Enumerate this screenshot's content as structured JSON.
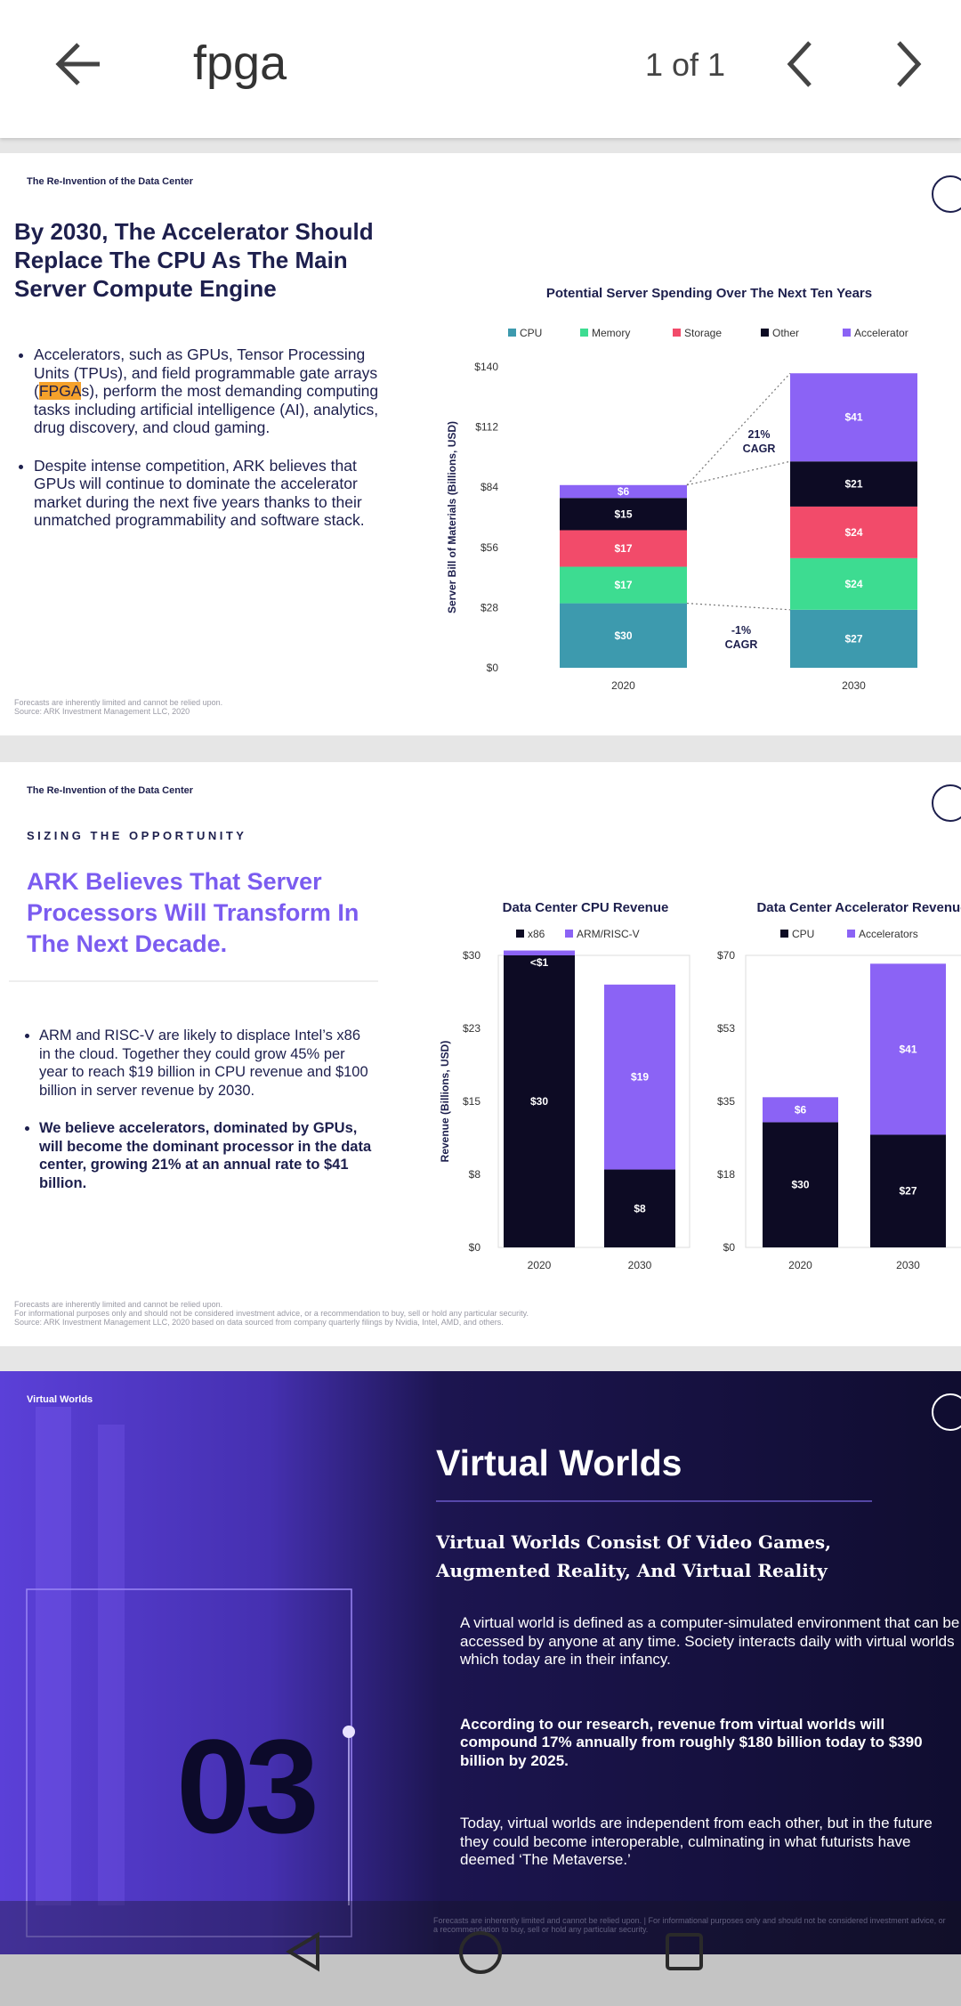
{
  "toolbar": {
    "query": "fpga",
    "match_count": "1 of 1"
  },
  "slides": [
    {
      "section": "The Re-Invention of the Data Center",
      "title": "By 2030, The Accelerator Should Replace The CPU As The Main Server Compute Engine",
      "bullets": [
        {
          "before": "Accelerators, such as GPUs, Tensor Processing Units (TPUs), and field programmable gate arrays (",
          "match": "FPGA",
          "after": "s), perform the most demanding computing tasks including artificial intelligence (AI), analytics, drug discovery, and cloud gaming."
        },
        {
          "text": "Despite intense competition, ARK believes that GPUs will continue to dominate the accelerator market during the next five years thanks to their unmatched programmability and software stack."
        }
      ],
      "footnote": [
        "Forecasts are inherently limited and cannot be relied upon.",
        "Source: ARK Investment Management LLC, 2020"
      ],
      "chart": {
        "type": "stacked-bar",
        "title": "Potential Server Spending Over The Next Ten Years",
        "ylabel": "Server Bill of Materials (Billions, USD)",
        "categories": [
          "2020",
          "2030"
        ],
        "series": [
          {
            "name": "CPU",
            "color": "#3d9aae",
            "values": [
              30,
              27
            ],
            "value_labels": [
              "$30",
              "$27"
            ]
          },
          {
            "name": "Memory",
            "color": "#3ddc91",
            "values": [
              17,
              24
            ],
            "value_labels": [
              "$17",
              "$24"
            ]
          },
          {
            "name": "Storage",
            "color": "#f24b6a",
            "values": [
              17,
              24
            ],
            "value_labels": [
              "$17",
              "$24"
            ]
          },
          {
            "name": "Other",
            "color": "#0d0b24",
            "values": [
              15,
              21
            ],
            "value_labels": [
              "$15",
              "$21"
            ]
          },
          {
            "name": "Accelerator",
            "color": "#8b63f5",
            "values": [
              6,
              41
            ],
            "value_labels": [
              "$6",
              "$41"
            ]
          }
        ],
        "ylim": [
          0,
          140
        ],
        "yticks": [
          {
            "value": 0,
            "label": "$0"
          },
          {
            "value": 28,
            "label": "$28"
          },
          {
            "value": 56,
            "label": "$56"
          },
          {
            "value": 84,
            "label": "$84"
          },
          {
            "value": 112,
            "label": "$112"
          },
          {
            "value": 140,
            "label": "$140"
          }
        ],
        "annotations": [
          [
            "21%",
            "CAGR"
          ],
          [
            "-1%",
            "CAGR"
          ]
        ]
      }
    },
    {
      "section": "The Re-Invention of the Data Center",
      "kicker": "SIZING THE OPPORTUNITY",
      "title": "ARK Believes That Server Processors Will Transform In The Next Decade.",
      "bullets": [
        {
          "text": "ARM and RISC-V are likely to displace Intel’s x86 in the cloud. Together they could grow 45% per year to reach $19 billion in CPU revenue and $100 billion in server revenue by 2030."
        },
        {
          "text": "We believe accelerators, dominated by GPUs, will become the dominant processor in the data center, growing 21% at an annual rate to $41 billion.",
          "bold": true
        }
      ],
      "footnote": [
        "Forecasts are inherently limited and cannot be relied upon.",
        "For informational purposes only and should not be considered investment advice, or a recommendation to buy, sell or hold any particular security.",
        "Source: ARK Investment Management LLC, 2020 based on data sourced from company quarterly filings by Nvidia, Intel, AMD, and others."
      ],
      "charts": [
        {
          "type": "stacked-bar",
          "title": "Data Center CPU Revenue",
          "ylabel": "Revenue (Billions, USD)",
          "frame": true,
          "categories": [
            "2020",
            "2030"
          ],
          "series": [
            {
              "name": "x86",
              "color": "#0d0b24",
              "values": [
                30,
                8
              ],
              "value_labels": [
                "$30",
                "$8"
              ]
            },
            {
              "name": "ARM/RISC-V",
              "color": "#8b63f5",
              "values": [
                0.5,
                19
              ],
              "value_labels": [
                "<$1",
                "$19"
              ]
            }
          ],
          "ylim": [
            0,
            30
          ],
          "yticks": [
            {
              "value": 0,
              "label": "$0"
            },
            {
              "value": 7.5,
              "label": "$8"
            },
            {
              "value": 15,
              "label": "$15"
            },
            {
              "value": 22.5,
              "label": "$23"
            },
            {
              "value": 30,
              "label": "$30"
            }
          ]
        },
        {
          "type": "stacked-bar",
          "title": "Data Center Accelerator Revenue",
          "frame": true,
          "categories": [
            "2020",
            "2030"
          ],
          "series": [
            {
              "name": "CPU",
              "color": "#0d0b24",
              "values": [
                30,
                27
              ],
              "value_labels": [
                "$30",
                "$27"
              ]
            },
            {
              "name": "Accelerators",
              "color": "#8b63f5",
              "values": [
                6,
                41
              ],
              "value_labels": [
                "$6",
                "$41"
              ]
            }
          ],
          "ylim": [
            0,
            70
          ],
          "yticks": [
            {
              "value": 0,
              "label": "$0"
            },
            {
              "value": 17.5,
              "label": "$18"
            },
            {
              "value": 35,
              "label": "$35"
            },
            {
              "value": 52.5,
              "label": "$53"
            },
            {
              "value": 70,
              "label": "$70"
            }
          ]
        }
      ]
    },
    {
      "section": "Virtual Worlds",
      "number": "03",
      "title": "Virtual Worlds",
      "subtitle": "Virtual Worlds Consist Of Video Games, Augmented Reality, And Virtual Reality",
      "bullets": [
        {
          "text": "A virtual world is defined as a computer-simulated environment that can be accessed by anyone at any time. Society interacts daily with virtual worlds which today are in their infancy."
        },
        {
          "text": "According to our research, revenue from virtual worlds will compound 17% annually from roughly $180 billion today to $390 billion by 2025.",
          "bold": true
        },
        {
          "text": "Today, virtual worlds are independent from each other, but in the future they could become interoperable, culminating in what futurists have deemed ‘The Metaverse.’"
        }
      ],
      "footnote": [
        "Forecasts are inherently limited and cannot be relied upon. | For informational purposes only and should not be considered investment advice, or a recommendation to buy, sell or hold any particular security."
      ]
    }
  ]
}
